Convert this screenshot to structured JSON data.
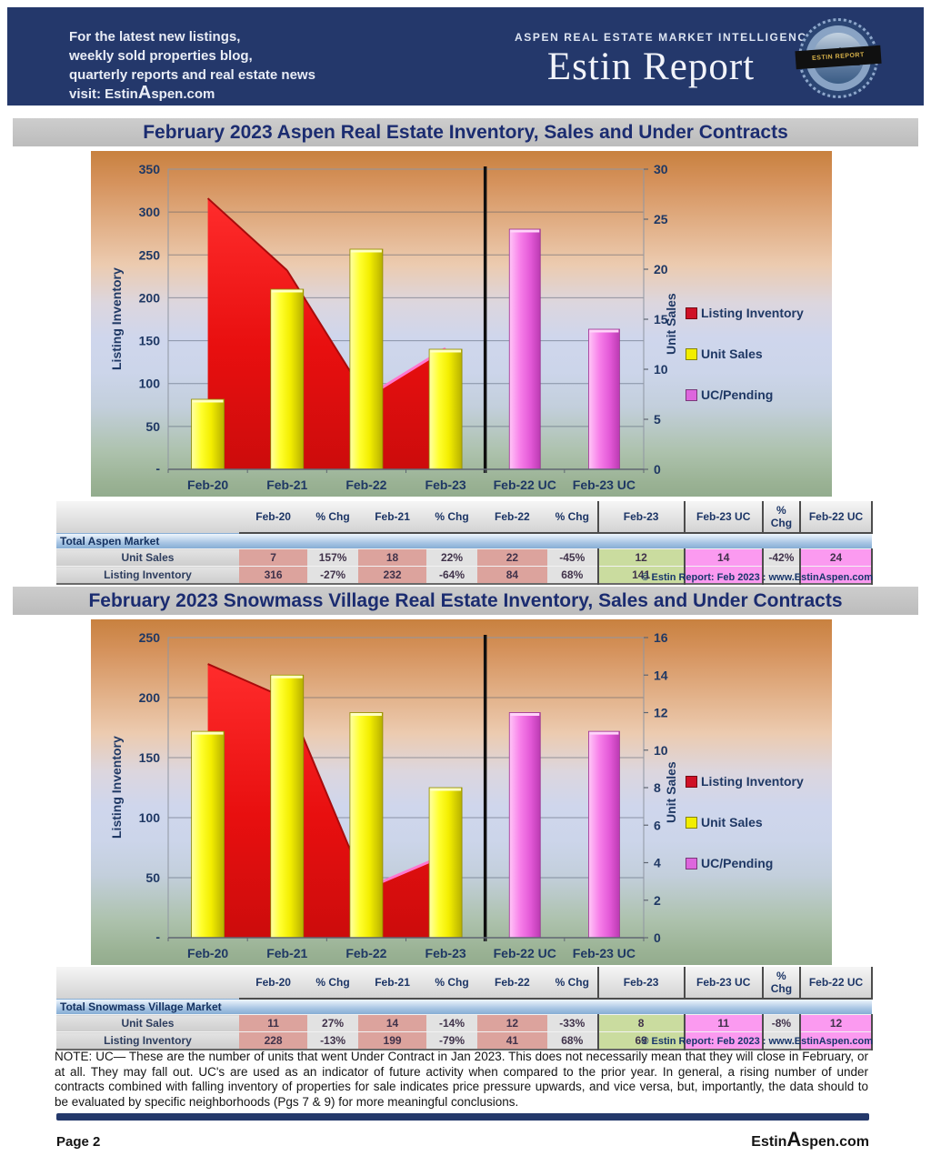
{
  "header": {
    "promo_lines": [
      "For the latest new listings,",
      "weekly sold properties blog,",
      "quarterly reports and real estate news"
    ],
    "promo_visit": {
      "pre": "visit: Estin",
      "a": "A",
      "post": "spen.com"
    },
    "tagline": "ASPEN REAL ESTATE MARKET INTELLIGENCE",
    "brand": "Estin Report",
    "logo_text": "ESTIN REPORT"
  },
  "sections": [
    {
      "title": "February 2023 Aspen Real Estate Inventory, Sales and Under Contracts",
      "copyright": "© Estin Report: Feb 2023 : www.EstinAspen.com"
    },
    {
      "title": "February 2023 Snowmass Village Real Estate Inventory, Sales and Under Contracts",
      "copyright": "© Estin Report: Feb 2023 : www.EstinAspen.com"
    }
  ],
  "chart_data": [
    {
      "type": "combo (area + bar, dual axis)",
      "title": "February 2023 Aspen Real Estate Inventory, Sales and Under Contracts",
      "categories": [
        "Feb-20",
        "Feb-21",
        "Feb-22",
        "Feb-23",
        "Feb-22 UC",
        "Feb-23 UC"
      ],
      "series": [
        {
          "name": "Listing Inventory",
          "type": "area",
          "axis": "left",
          "color": "#ee1111",
          "x": [
            "Feb-20",
            "Feb-21",
            "Feb-22",
            "Feb-23"
          ],
          "values": [
            316,
            232,
            84,
            141
          ]
        },
        {
          "name": "Unit Sales",
          "type": "bar",
          "axis": "right",
          "color": "#ffff00",
          "x": [
            "Feb-20",
            "Feb-21",
            "Feb-22",
            "Feb-23"
          ],
          "values": [
            7,
            18,
            22,
            12
          ]
        },
        {
          "name": "UC/Pending",
          "type": "bar",
          "axis": "right",
          "color": "#f06ae8",
          "x": [
            "Feb-22 UC",
            "Feb-23 UC"
          ],
          "values": [
            24,
            14
          ]
        }
      ],
      "left_axis": {
        "label": "Listing Inventory",
        "min": 0,
        "max": 350,
        "step": 50,
        "zero_label": "-"
      },
      "right_axis": {
        "label": "Unit Sales",
        "min": 0,
        "max": 30,
        "step": 5
      },
      "legend": [
        "Listing Inventory",
        "Unit Sales",
        "UC/Pending"
      ],
      "legend_position": "right",
      "grid": true,
      "divider_after_category": "Feb-23"
    },
    {
      "type": "combo (area + bar, dual axis)",
      "title": "February 2023 Snowmass Village Real Estate Inventory, Sales and Under Contracts",
      "categories": [
        "Feb-20",
        "Feb-21",
        "Feb-22",
        "Feb-23",
        "Feb-22 UC",
        "Feb-23 UC"
      ],
      "series": [
        {
          "name": "Listing Inventory",
          "type": "area",
          "axis": "left",
          "color": "#ee1111",
          "x": [
            "Feb-20",
            "Feb-21",
            "Feb-22",
            "Feb-23"
          ],
          "values": [
            228,
            199,
            41,
            69
          ]
        },
        {
          "name": "Unit Sales",
          "type": "bar",
          "axis": "right",
          "color": "#ffff00",
          "x": [
            "Feb-20",
            "Feb-21",
            "Feb-22",
            "Feb-23"
          ],
          "values": [
            11,
            14,
            12,
            8
          ]
        },
        {
          "name": "UC/Pending",
          "type": "bar",
          "axis": "right",
          "color": "#f06ae8",
          "x": [
            "Feb-22 UC",
            "Feb-23 UC"
          ],
          "values": [
            12,
            11
          ]
        }
      ],
      "left_axis": {
        "label": "Listing Inventory",
        "min": 0,
        "max": 250,
        "step": 50,
        "zero_label": "-"
      },
      "right_axis": {
        "label": "Unit Sales",
        "min": 0,
        "max": 16,
        "step": 2
      },
      "legend": [
        "Listing Inventory",
        "Unit Sales",
        "UC/Pending"
      ],
      "legend_position": "right",
      "grid": true,
      "divider_after_category": "Feb-23"
    }
  ],
  "tables": [
    {
      "headers": [
        "",
        "Feb-20",
        "% Chg",
        "Feb-21",
        "% Chg",
        "Feb-22",
        "% Chg",
        "Feb-23",
        "Feb-23 UC",
        "% Chg",
        "Feb-22 UC"
      ],
      "market_label": "Total Aspen Market",
      "rows": [
        {
          "label": "Unit Sales",
          "values": [
            "7",
            "157%",
            "18",
            "22%",
            "22",
            "-45%",
            "12",
            "14",
            "-42%",
            "24"
          ]
        },
        {
          "label": "Listing Inventory",
          "values": [
            "316",
            "-27%",
            "232",
            "-64%",
            "84",
            "68%",
            "141",
            "",
            "",
            ""
          ]
        }
      ]
    },
    {
      "headers": [
        "",
        "Feb-20",
        "% Chg",
        "Feb-21",
        "% Chg",
        "Feb-22",
        "% Chg",
        "Feb-23",
        "Feb-23 UC",
        "% Chg",
        "Feb-22 UC"
      ],
      "market_label": "Total Snowmass Village Market",
      "rows": [
        {
          "label": "Unit Sales",
          "values": [
            "11",
            "27%",
            "14",
            "-14%",
            "12",
            "-33%",
            "8",
            "11",
            "-8%",
            "12"
          ]
        },
        {
          "label": "Listing Inventory",
          "values": [
            "228",
            "-13%",
            "199",
            "-79%",
            "41",
            "68%",
            "69",
            "",
            "",
            ""
          ]
        }
      ]
    }
  ],
  "note": "NOTE: UC— These are the number of units that went Under Contract in Jan 2023. This does not necessarily mean that they will close in February, or at all. They may fall out. UC's are used as an indicator of future activity when compared to the prior year. In general, a rising number of under contracts combined with falling inventory of properties for sale indicates price pressure upwards, and vice versa, but, importantly, the data should to be evaluated by specific neighborhoods (Pgs 7 & 9) for more meaningful conclusions.",
  "footer": {
    "page": "Page 2",
    "brand": {
      "pre": "Estin",
      "a": "A",
      "post": "spen.com"
    }
  },
  "colors": {
    "banner_navy": "#24386b",
    "title_text_navy": "#1b2c70",
    "area_red": "#ee1111",
    "bar_yellow": "#ffff00",
    "bar_magenta": "#f06ae8",
    "cell_salmon": "#dca39d",
    "cell_green": "#cadc9f",
    "cell_magenta": "#fb9af0",
    "axis_text": "#1f3864"
  }
}
